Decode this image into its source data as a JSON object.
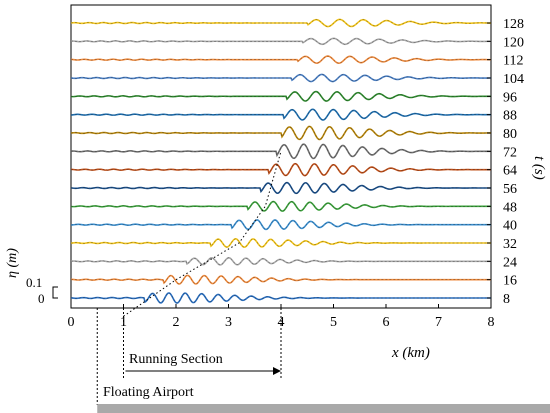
{
  "chart_data": {
    "type": "line",
    "xlabel": "x (km)",
    "ylabel_right": "t (s)",
    "ylabel_left": "η (m)",
    "scale_ticks": [
      "0.1",
      "0"
    ],
    "x_ticks": [
      "0",
      "1",
      "2",
      "3",
      "4",
      "5",
      "6",
      "7",
      "8"
    ],
    "xlim": [
      0,
      8
    ],
    "time_labels": [
      "128",
      "120",
      "112",
      "104",
      "96",
      "88",
      "80",
      "72",
      "64",
      "56",
      "48",
      "40",
      "32",
      "24",
      "16",
      "8"
    ],
    "series": [
      {
        "t": 128,
        "color": "#f2c41a",
        "front_x": 4.6,
        "amp": 0.03
      },
      {
        "t": 120,
        "color": "#a9a9a9",
        "front_x": 4.5,
        "amp": 0.025
      },
      {
        "t": 112,
        "color": "#ef8a3c",
        "front_x": 4.4,
        "amp": 0.03
      },
      {
        "t": 104,
        "color": "#4a7fc4",
        "front_x": 4.3,
        "amp": 0.03
      },
      {
        "t": 96,
        "color": "#2e8a2e",
        "front_x": 4.2,
        "amp": 0.04
      },
      {
        "t": 88,
        "color": "#1e6fb0",
        "front_x": 4.15,
        "amp": 0.045
      },
      {
        "t": 80,
        "color": "#b8860b",
        "front_x": 4.1,
        "amp": 0.055
      },
      {
        "t": 72,
        "color": "#707070",
        "front_x": 4.0,
        "amp": 0.06
      },
      {
        "t": 64,
        "color": "#c0501a",
        "front_x": 3.85,
        "amp": 0.05
      },
      {
        "t": 56,
        "color": "#1a4f8a",
        "front_x": 3.7,
        "amp": 0.045
      },
      {
        "t": 48,
        "color": "#3aa03a",
        "front_x": 3.45,
        "amp": 0.04
      },
      {
        "t": 40,
        "color": "#3a8fd0",
        "front_x": 3.15,
        "amp": 0.04
      },
      {
        "t": 32,
        "color": "#f2c41a",
        "front_x": 2.75,
        "amp": 0.035
      },
      {
        "t": 24,
        "color": "#a9a9a9",
        "front_x": 2.3,
        "amp": 0.03
      },
      {
        "t": 16,
        "color": "#ef8a3c",
        "front_x": 1.85,
        "amp": 0.035
      },
      {
        "t": 8,
        "color": "#2a6fc0",
        "front_x": 1.5,
        "amp": 0.04
      }
    ],
    "front_curve": {
      "x": [
        1.0,
        1.5,
        2.0,
        2.6,
        3.2,
        3.7,
        4.0
      ],
      "t": [
        0,
        8,
        16,
        24,
        32,
        48,
        72
      ]
    },
    "annotations": {
      "running_section": "Running Section",
      "running_section_range": [
        1.0,
        4.0
      ],
      "floating_airport": "Floating Airport",
      "floating_airport_x": 0.5
    }
  }
}
